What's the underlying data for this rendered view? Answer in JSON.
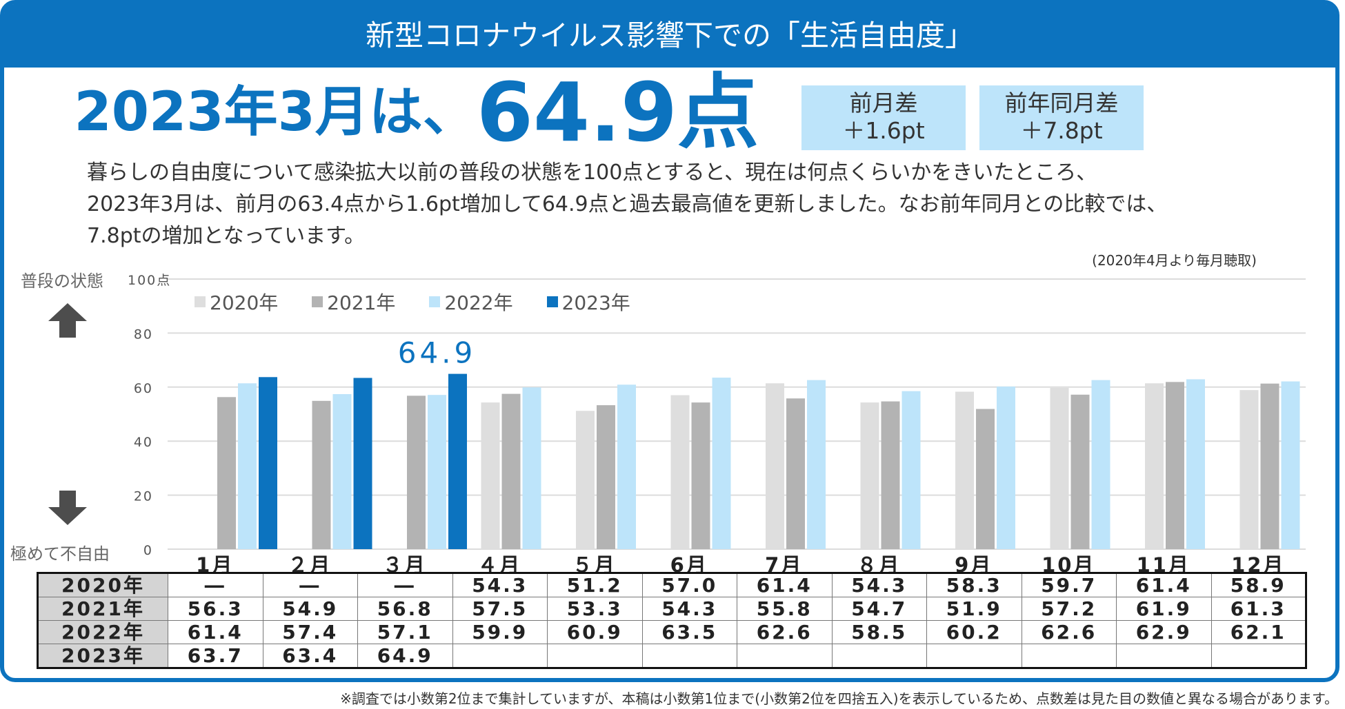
{
  "title": "新型コロナウイルス影響下での「生活自由度」",
  "headline": {
    "prefix": "2023年3月は、",
    "value": "64.9点"
  },
  "diff_month": {
    "label": "前月差",
    "value": "＋1.6pt"
  },
  "diff_year": {
    "label": "前年同月差",
    "value": "＋7.8pt"
  },
  "description": [
    "暮らしの自由度について感染拡大以前の普段の状態を100点とすると、現在は何点くらいかをきいたところ、",
    "2023年3月は、前月の63.4点から1.6pt増加して64.9点と過去最高値を更新しました。なお前年同月との比較では、",
    "7.8ptの増加となっています。"
  ],
  "note_top": "(2020年4月より毎月聴取)",
  "side_top": "普段の状態",
  "side_bottom": "極めて不自由",
  "footnote": "※調査では小数第2位まで集計していますが、本稿は小数第1位まで(小数第2位を四捨五入)を表示しているため、点数差は見た目の数値と異なる場合があります。",
  "colors": {
    "brand": "#0c73bf",
    "y2020": "#dedede",
    "y2021": "#b3b3b3",
    "y2022": "#bde4fa",
    "y2023": "#0c73bf"
  },
  "chart_data": {
    "type": "bar",
    "categories": [
      "1月",
      "２月",
      "３月",
      "４月",
      "５月",
      "6月",
      "7月",
      "８月",
      "9月",
      "10月",
      "11月",
      "12月"
    ],
    "series": [
      {
        "name": "2020年",
        "values": [
          null,
          null,
          null,
          54.3,
          51.2,
          57.0,
          61.4,
          54.3,
          58.3,
          59.7,
          61.4,
          58.9
        ]
      },
      {
        "name": "2021年",
        "values": [
          56.3,
          54.9,
          56.8,
          57.5,
          53.3,
          54.3,
          55.8,
          54.7,
          51.9,
          57.2,
          61.9,
          61.3
        ]
      },
      {
        "name": "2022年",
        "values": [
          61.4,
          57.4,
          57.1,
          59.9,
          60.9,
          63.5,
          62.6,
          58.5,
          60.2,
          62.6,
          62.9,
          62.1
        ]
      },
      {
        "name": "2023年",
        "values": [
          63.7,
          63.4,
          64.9,
          null,
          null,
          null,
          null,
          null,
          null,
          null,
          null,
          null
        ]
      }
    ],
    "ylim": [
      0,
      100
    ],
    "yticks": [
      "0",
      "20",
      "40",
      "60",
      "80",
      "100点"
    ],
    "annotation": "64.9",
    "legend_position": "top-left",
    "grid": true
  },
  "table": {
    "rows": [
      {
        "label": "2020年",
        "cells": [
          "―",
          "―",
          "―",
          "54.3",
          "51.2",
          "57.0",
          "61.4",
          "54.3",
          "58.3",
          "59.7",
          "61.4",
          "58.9"
        ]
      },
      {
        "label": "2021年",
        "cells": [
          "56.3",
          "54.9",
          "56.8",
          "57.5",
          "53.3",
          "54.3",
          "55.8",
          "54.7",
          "51.9",
          "57.2",
          "61.9",
          "61.3"
        ]
      },
      {
        "label": "2022年",
        "cells": [
          "61.4",
          "57.4",
          "57.1",
          "59.9",
          "60.9",
          "63.5",
          "62.6",
          "58.5",
          "60.2",
          "62.6",
          "62.9",
          "62.1"
        ]
      },
      {
        "label": "2023年",
        "cells": [
          "63.7",
          "63.4",
          "64.9",
          "",
          "",
          "",
          "",
          "",
          "",
          "",
          "",
          ""
        ]
      }
    ]
  }
}
